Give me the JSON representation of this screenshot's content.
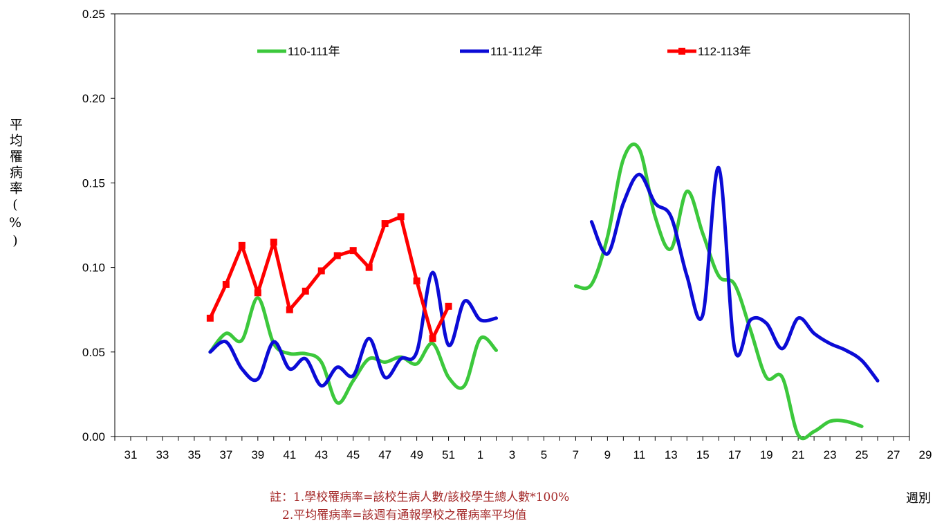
{
  "chart_data": {
    "type": "line",
    "ylabel": "平均罹病率(%)",
    "xlabel": "週別",
    "ylim": [
      0,
      0.25
    ],
    "yticks": [
      "0.00",
      "0.05",
      "0.10",
      "0.15",
      "0.20",
      "0.25"
    ],
    "xticks": [
      "31",
      "33",
      "35",
      "37",
      "39",
      "41",
      "43",
      "45",
      "47",
      "49",
      "51",
      "1",
      "3",
      "5",
      "7",
      "9",
      "11",
      "13",
      "15",
      "17",
      "19",
      "21",
      "23",
      "25",
      "27",
      "29"
    ],
    "grid": false,
    "legend_position": "top",
    "series": [
      {
        "name": "110-111年",
        "color": "#3cc83c",
        "marker": "none",
        "values": [
          [
            36,
            0.05
          ],
          [
            37,
            0.061
          ],
          [
            38,
            0.057
          ],
          [
            39,
            0.082
          ],
          [
            40,
            0.055
          ],
          [
            41,
            0.049
          ],
          [
            42,
            0.049
          ],
          [
            43,
            0.044
          ],
          [
            44,
            0.02
          ],
          [
            45,
            0.033
          ],
          [
            46,
            0.046
          ],
          [
            47,
            0.044
          ],
          [
            48,
            0.047
          ],
          [
            49,
            0.043
          ],
          [
            50,
            0.055
          ],
          [
            51,
            0.035
          ],
          [
            52,
            0.03
          ],
          [
            53,
            0.058
          ],
          [
            54,
            0.051
          ],
          null,
          [
            59,
            0.089
          ],
          [
            60,
            0.09
          ],
          [
            61,
            0.118
          ],
          [
            62,
            0.164
          ],
          [
            63,
            0.17
          ],
          [
            64,
            0.13
          ],
          [
            65,
            0.111
          ],
          [
            66,
            0.145
          ],
          [
            67,
            0.12
          ],
          [
            68,
            0.095
          ],
          [
            69,
            0.09
          ],
          [
            70,
            0.063
          ],
          [
            71,
            0.035
          ],
          [
            72,
            0.035
          ],
          [
            73,
            0.001
          ],
          [
            74,
            0.003
          ],
          [
            75,
            0.009
          ],
          [
            76,
            0.009
          ],
          [
            77,
            0.006
          ]
        ]
      },
      {
        "name": "111-112年",
        "color": "#0b0bd6",
        "marker": "none",
        "values": [
          [
            36,
            0.05
          ],
          [
            37,
            0.056
          ],
          [
            38,
            0.04
          ],
          [
            39,
            0.034
          ],
          [
            40,
            0.056
          ],
          [
            41,
            0.04
          ],
          [
            42,
            0.046
          ],
          [
            43,
            0.03
          ],
          [
            44,
            0.041
          ],
          [
            45,
            0.036
          ],
          [
            46,
            0.058
          ],
          [
            47,
            0.035
          ],
          [
            48,
            0.046
          ],
          [
            49,
            0.05
          ],
          [
            50,
            0.097
          ],
          [
            51,
            0.054
          ],
          [
            52,
            0.08
          ],
          [
            53,
            0.069
          ],
          [
            54,
            0.07
          ],
          null,
          [
            60,
            0.127
          ],
          [
            61,
            0.108
          ],
          [
            62,
            0.138
          ],
          [
            63,
            0.155
          ],
          [
            64,
            0.138
          ],
          [
            65,
            0.13
          ],
          [
            66,
            0.095
          ],
          [
            67,
            0.072
          ],
          [
            68,
            0.159
          ],
          [
            69,
            0.052
          ],
          [
            70,
            0.069
          ],
          [
            71,
            0.067
          ],
          [
            72,
            0.052
          ],
          [
            73,
            0.07
          ],
          [
            74,
            0.061
          ],
          [
            75,
            0.055
          ],
          [
            76,
            0.051
          ],
          [
            77,
            0.045
          ],
          [
            78,
            0.033
          ]
        ]
      },
      {
        "name": "112-113年",
        "color": "#ff0000",
        "marker": "square",
        "values": [
          [
            36,
            0.07
          ],
          [
            37,
            0.09
          ],
          [
            38,
            0.113
          ],
          [
            39,
            0.085
          ],
          [
            40,
            0.115
          ],
          [
            41,
            0.075
          ],
          [
            42,
            0.086
          ],
          [
            43,
            0.098
          ],
          [
            44,
            0.107
          ],
          [
            45,
            0.11
          ],
          [
            46,
            0.1
          ],
          [
            47,
            0.126
          ],
          [
            48,
            0.13
          ],
          [
            49,
            0.092
          ],
          [
            50,
            0.058
          ],
          [
            51,
            0.077
          ]
        ]
      }
    ]
  },
  "notes": [
    "註：1.學校罹病率=該校生病人數/該校學生總人數*100%",
    "2.平均罹病率=該週有通報學校之罹病率平均值"
  ]
}
